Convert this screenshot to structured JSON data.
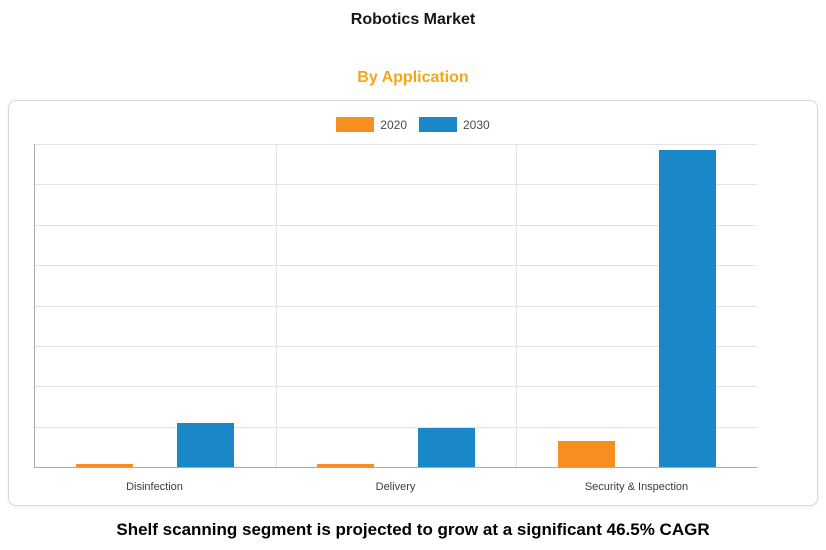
{
  "page": {
    "title": "Robotics Market",
    "subtitle": "By Application",
    "caption": "Shelf scanning segment is projected to grow at a significant 46.5% CAGR"
  },
  "colors": {
    "subtitle": "#f2a71b",
    "series_2020": "#f78f20",
    "series_2030": "#1a87c9"
  },
  "legend": {
    "items": [
      {
        "label": "2020",
        "color": "#f78f20"
      },
      {
        "label": "2030",
        "color": "#1a87c9"
      }
    ]
  },
  "chart_data": {
    "type": "bar",
    "title": "Robotics Market",
    "subtitle": "By Application",
    "categories": [
      "Disinfection",
      "Delivery",
      "Security & Inspection"
    ],
    "series": [
      {
        "name": "2020",
        "color": "#f78f20",
        "values": [
          1,
          1,
          8
        ]
      },
      {
        "name": "2030",
        "color": "#1a87c9",
        "values": [
          13.5,
          12,
          98
        ]
      }
    ],
    "xlabel": "",
    "ylabel": "",
    "ylim": [
      0,
      100
    ],
    "grid": true,
    "gridline_rows": 8,
    "legend_position": "top-center"
  }
}
